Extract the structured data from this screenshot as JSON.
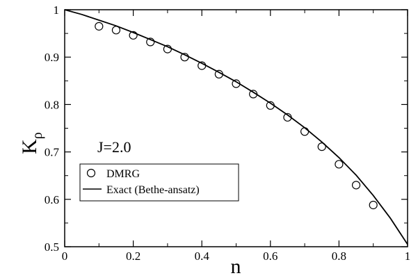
{
  "chart_data": {
    "type": "scatter",
    "xlabel": "n",
    "ylabel_main": "K",
    "ylabel_sub": "ρ",
    "xlim": [
      0,
      1
    ],
    "ylim": [
      0.5,
      1
    ],
    "x_ticks": [
      "0",
      "0.2",
      "0.4",
      "0.6",
      "0.8",
      "1"
    ],
    "x_tick_values": [
      0,
      0.2,
      0.4,
      0.6,
      0.8,
      1
    ],
    "y_ticks": [
      "0.5",
      "0.6",
      "0.7",
      "0.8",
      "0.9",
      "1"
    ],
    "y_tick_values": [
      0.5,
      0.6,
      0.7,
      0.8,
      0.9,
      1
    ],
    "annotation": "J=2.0",
    "legend_position": "lower-left",
    "series": [
      {
        "name": "DMRG",
        "style": "open-circle",
        "x": [
          0.1,
          0.15,
          0.2,
          0.25,
          0.3,
          0.35,
          0.4,
          0.45,
          0.5,
          0.55,
          0.6,
          0.65,
          0.7,
          0.75,
          0.8,
          0.85,
          0.9
        ],
        "y": [
          0.965,
          0.957,
          0.946,
          0.932,
          0.917,
          0.9,
          0.882,
          0.864,
          0.844,
          0.822,
          0.798,
          0.773,
          0.743,
          0.711,
          0.674,
          0.63,
          0.588
        ]
      },
      {
        "name": "Exact (Bethe-ansatz)",
        "style": "line",
        "x": [
          0,
          0.05,
          0.1,
          0.15,
          0.2,
          0.25,
          0.3,
          0.35,
          0.4,
          0.45,
          0.5,
          0.55,
          0.6,
          0.65,
          0.7,
          0.75,
          0.8,
          0.85,
          0.9,
          0.95,
          1.0
        ],
        "y": [
          1.0,
          0.99,
          0.978,
          0.966,
          0.952,
          0.937,
          0.922,
          0.905,
          0.887,
          0.868,
          0.848,
          0.826,
          0.803,
          0.778,
          0.751,
          0.721,
          0.688,
          0.651,
          0.608,
          0.56,
          0.505
        ]
      }
    ]
  }
}
